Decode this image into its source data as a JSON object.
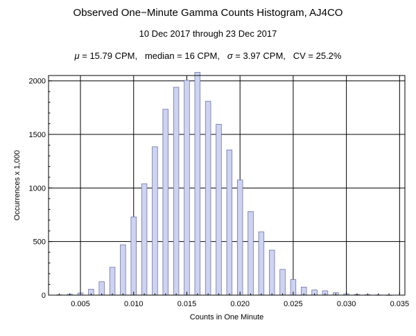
{
  "chart_data": {
    "type": "bar",
    "title": "Observed One−Minute Gamma Counts Histogram, AJ4CO",
    "subtitle": "10 Dec 2017 through 23 Dec 2017",
    "stats": {
      "mu_symbol": "μ",
      "mu_text": " = 15.79 CPM,",
      "median_text": "median = 16 CPM,",
      "sigma_symbol": "σ",
      "sigma_text": " = 3.97 CPM,",
      "cv_text": "CV = 25.2%"
    },
    "xlabel": "Counts in One Minute",
    "ylabel": "Occurrences x 1,000",
    "xlim": [
      0.002,
      0.0355
    ],
    "ylim": [
      0,
      2050
    ],
    "xticks": [
      0.005,
      0.01,
      0.015,
      0.02,
      0.025,
      0.03,
      0.035
    ],
    "xtick_labels": [
      "0.005",
      "0.010",
      "0.015",
      "0.020",
      "0.025",
      "0.030",
      "0.035"
    ],
    "yticks": [
      0,
      500,
      1000,
      1500,
      2000
    ],
    "ytick_labels": [
      "0",
      "500",
      "1000",
      "1500",
      "2000"
    ],
    "grid": true,
    "bar_width": 0.0005,
    "bar_color": "#cdd3f0",
    "bar_edge_color": "#6f74a8",
    "x": [
      0.003,
      0.004,
      0.005,
      0.006,
      0.007,
      0.008,
      0.009,
      0.01,
      0.011,
      0.012,
      0.013,
      0.014,
      0.015,
      0.016,
      0.017,
      0.018,
      0.019,
      0.02,
      0.021,
      0.022,
      0.023,
      0.024,
      0.025,
      0.026,
      0.027,
      0.028,
      0.029,
      0.03,
      0.031,
      0.032,
      0.033,
      0.034
    ],
    "values": [
      3,
      8,
      20,
      55,
      125,
      260,
      470,
      730,
      1040,
      1385,
      1735,
      1940,
      2005,
      2080,
      1810,
      1595,
      1355,
      1075,
      780,
      590,
      420,
      240,
      145,
      75,
      48,
      40,
      22,
      12,
      6,
      4,
      2,
      1
    ]
  }
}
